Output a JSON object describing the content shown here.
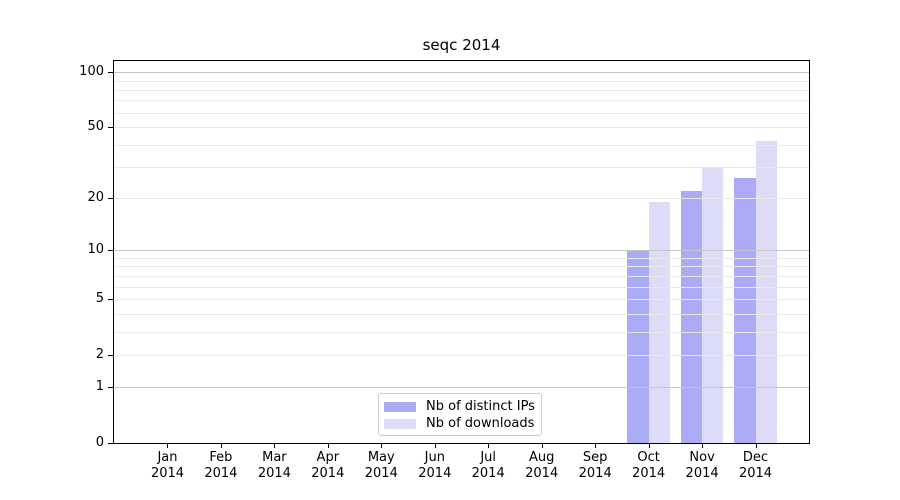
{
  "title": "seqc 2014",
  "chart_data": {
    "type": "bar",
    "title": "seqc 2014",
    "categories": [
      "Jan 2014",
      "Feb 2014",
      "Mar 2014",
      "Apr 2014",
      "May 2014",
      "Jun 2014",
      "Jul 2014",
      "Aug 2014",
      "Sep 2014",
      "Oct 2014",
      "Nov 2014",
      "Dec 2014"
    ],
    "months": [
      "Jan",
      "Feb",
      "Mar",
      "Apr",
      "May",
      "Jun",
      "Jul",
      "Aug",
      "Sep",
      "Oct",
      "Nov",
      "Dec"
    ],
    "year": "2014",
    "series": [
      {
        "name": "Nb of distinct IPs",
        "color": "#aaaaf7",
        "values": [
          0,
          0,
          0,
          0,
          0,
          0,
          0,
          0,
          0,
          10,
          22,
          26
        ]
      },
      {
        "name": "Nb of downloads",
        "color": "#dcdcf8",
        "values": [
          0,
          0,
          0,
          0,
          0,
          0,
          0,
          0,
          0,
          19,
          30,
          42
        ]
      }
    ],
    "xlabel": "",
    "ylabel": "",
    "y_axis": {
      "scale": "log1p",
      "ylim": [
        0,
        115
      ],
      "tick_values": [
        0,
        1,
        2,
        5,
        10,
        20,
        50,
        100
      ],
      "major_gridlines": [
        1,
        10,
        100
      ],
      "minor_gridlines": [
        2,
        3,
        4,
        5,
        6,
        7,
        8,
        9,
        20,
        30,
        40,
        50,
        60,
        70,
        80,
        90
      ]
    },
    "legend_position": "lower center",
    "grid": true
  },
  "colors": {
    "major_grid": "#c6c6c6",
    "minor_grid": "#e9e9e9",
    "spine": "#000000",
    "background": "#ffffff"
  }
}
